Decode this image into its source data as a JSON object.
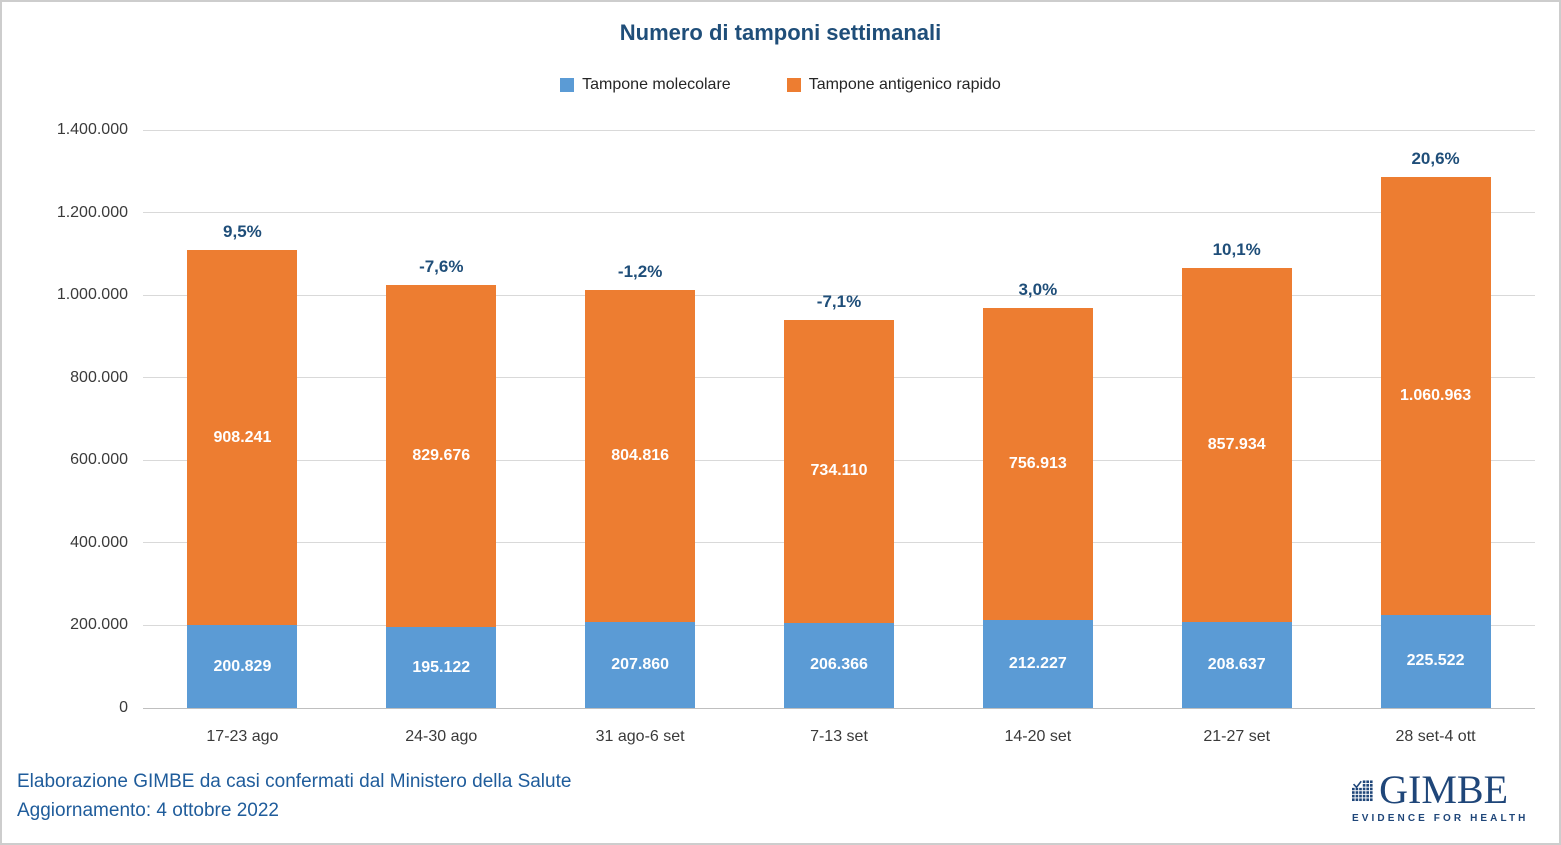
{
  "chart_data": {
    "type": "bar",
    "stacked": true,
    "title": "Numero di tamponi settimanali",
    "categories": [
      "17-23 ago",
      "24-30 ago",
      "31 ago-6 set",
      "7-13 set",
      "14-20 set",
      "21-27 set",
      "28 set-4 ott"
    ],
    "series": [
      {
        "name": "Tampone molecolare",
        "color": "#5B9BD5",
        "values": [
          200829,
          195122,
          207860,
          206366,
          212227,
          208637,
          225522
        ],
        "labels": [
          "200.829",
          "195.122",
          "207.860",
          "206.366",
          "212.227",
          "208.637",
          "225.522"
        ]
      },
      {
        "name": "Tampone antigenico rapido",
        "color": "#ED7D31",
        "values": [
          908241,
          829676,
          804816,
          734110,
          756913,
          857934,
          1060963
        ],
        "labels": [
          "908.241",
          "829.676",
          "804.816",
          "734.110",
          "756.913",
          "857.934",
          "1.060.963"
        ]
      }
    ],
    "total_change_labels": [
      "9,5%",
      "-7,6%",
      "-1,2%",
      "-7,1%",
      "3,0%",
      "10,1%",
      "20,6%"
    ],
    "ylim": [
      0,
      1400000
    ],
    "ytick_interval": 200000,
    "ytick_labels": [
      "0",
      "200.000",
      "400.000",
      "600.000",
      "800.000",
      "1.000.000",
      "1.200.000",
      "1.400.000"
    ],
    "grid": true,
    "legend_position": "top"
  },
  "footer": {
    "line1": "Elaborazione GIMBE da casi confermati dal Ministero della Salute",
    "line2": "Aggiornamento: 4 ottobre 2022"
  },
  "logo": {
    "name": "GIMBE",
    "tagline": "EVIDENCE FOR HEALTH",
    "icon": "gimbe-dot-grid-check-icon"
  },
  "colors": {
    "molecolare_blue": "#5B9BD5",
    "antigenico_orange": "#ED7D31",
    "title_navy": "#1F4E79",
    "footer_blue": "#1F5C9B",
    "gridline": "#D9D9D9",
    "axis_line": "#BFBFBF",
    "logo_blue": "#1F4679"
  }
}
